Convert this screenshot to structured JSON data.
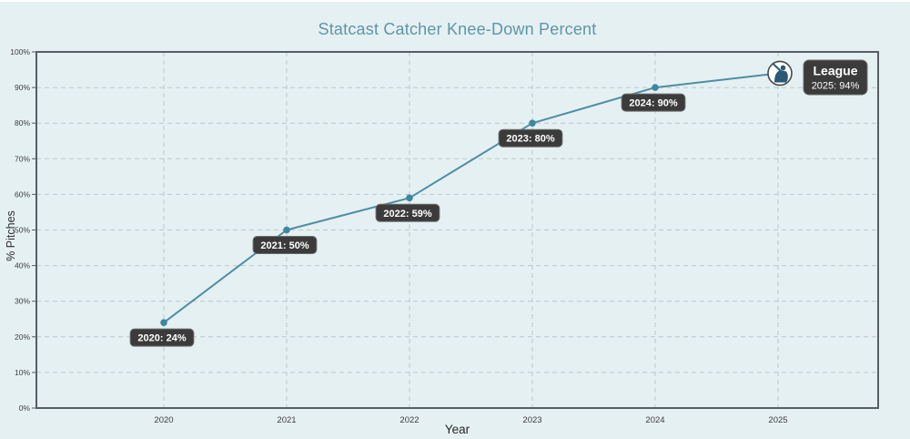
{
  "chart_data": {
    "type": "line",
    "title": "Statcast Catcher Knee-Down Percent",
    "xlabel": "Year",
    "ylabel": "% Pitches",
    "x": [
      2020,
      2021,
      2022,
      2023,
      2024,
      2025
    ],
    "x_tick_labels": [
      "2020",
      "2021",
      "2022",
      "2023",
      "2024",
      "2025"
    ],
    "y_tick_labels": [
      "0%",
      "10%",
      "20%",
      "30%",
      "40%",
      "50%",
      "60%",
      "70%",
      "80%",
      "90%",
      "100%"
    ],
    "ylim": [
      0,
      100
    ],
    "grid": true,
    "series": [
      {
        "name": "League",
        "values": [
          24,
          50,
          59,
          80,
          90,
          94
        ],
        "point_labels": [
          "2020: 24%",
          "2021: 50%",
          "2022: 59%",
          "2023: 80%",
          "2024: 90%"
        ],
        "color": "#4e8ea4"
      }
    ],
    "legend": {
      "position": "at-last-point",
      "icon": "mlb-logo-icon",
      "title": "League",
      "value": "2025: 94%"
    },
    "colors": {
      "background": "#e5f0f2",
      "title": "#5e95a7",
      "line": "#4e8ea4",
      "marker": "#3f87a0",
      "grid": "#b9c8cb",
      "axis_border": "#565e63",
      "label_box": "#3b3b3b",
      "label_box_border": "#6e6e6e",
      "label_text": "#ffffff",
      "tick_text": "#3d3d3d",
      "logo_silhouette": "#2a5a73"
    }
  }
}
